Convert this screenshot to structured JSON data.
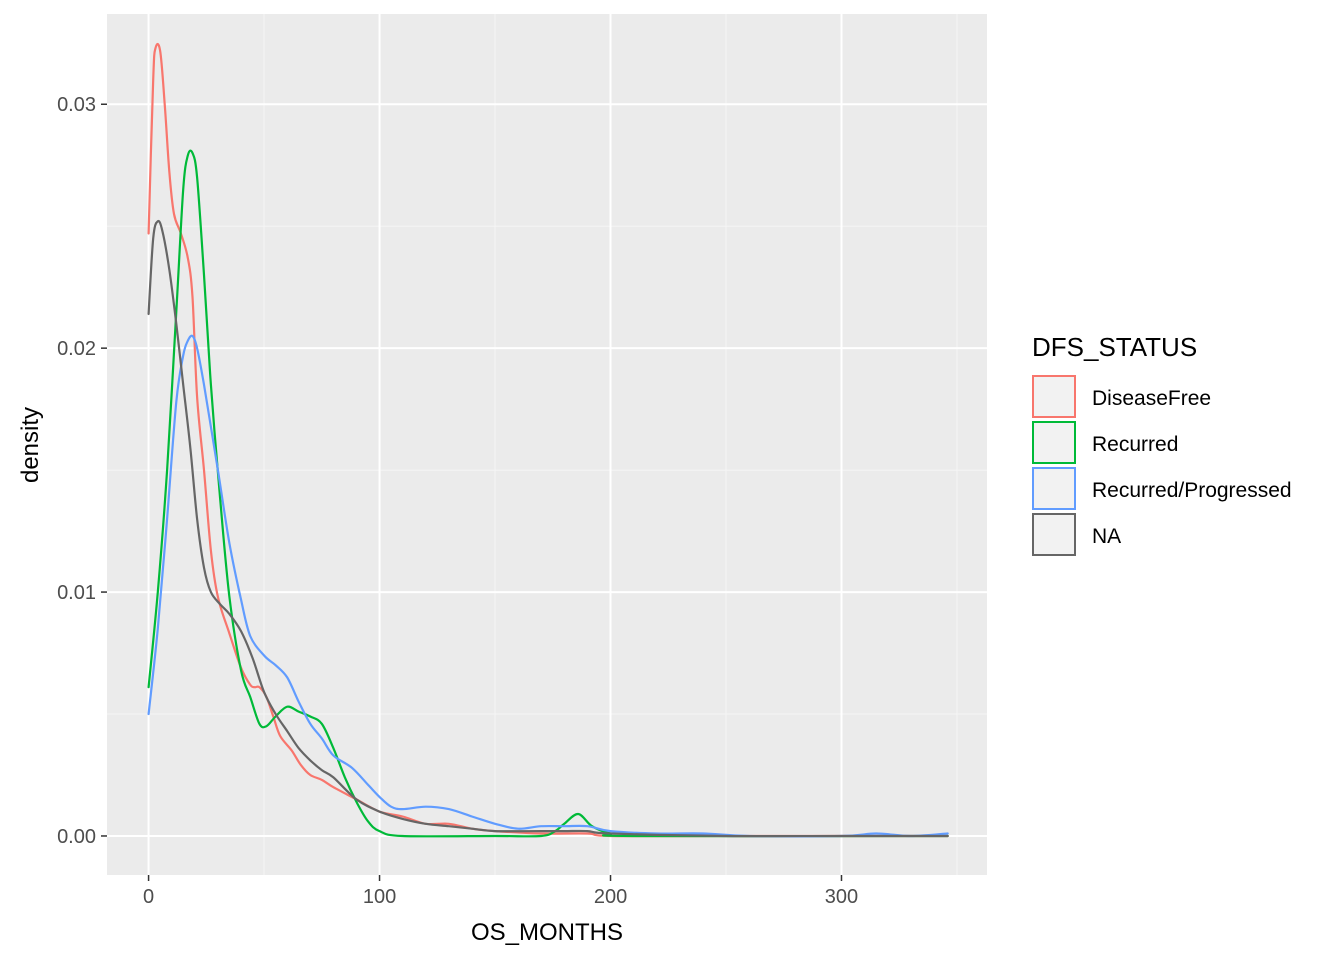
{
  "chart_data": {
    "type": "line",
    "subtype": "density",
    "title": "",
    "xlabel": "OS_MONTHS",
    "ylabel": "density",
    "xlim": [
      -18,
      363
    ],
    "ylim": [
      -0.0016,
      0.0337
    ],
    "x_ticks": [
      0,
      100,
      200,
      300
    ],
    "x_tick_labels": [
      "0",
      "100",
      "200",
      "300"
    ],
    "y_ticks": [
      0.0,
      0.01,
      0.02,
      0.03
    ],
    "y_tick_labels": [
      "0.00",
      "0.01",
      "0.02",
      "0.03"
    ],
    "grid": true,
    "legend": {
      "title": "DFS_STATUS",
      "position": "right"
    },
    "series": [
      {
        "name": "DiseaseFree",
        "color": "#F8766D",
        "points": [
          [
            0,
            0.0247
          ],
          [
            2,
            0.031
          ],
          [
            3,
            0.0323
          ],
          [
            5,
            0.0322
          ],
          [
            7,
            0.03
          ],
          [
            9,
            0.0272
          ],
          [
            11,
            0.0255
          ],
          [
            14,
            0.0247
          ],
          [
            17,
            0.0237
          ],
          [
            19,
            0.0221
          ],
          [
            21,
            0.018
          ],
          [
            24,
            0.015
          ],
          [
            27,
            0.0117
          ],
          [
            30,
            0.0098
          ],
          [
            35,
            0.0083
          ],
          [
            40,
            0.0069
          ],
          [
            44,
            0.0062
          ],
          [
            46,
            0.0061
          ],
          [
            48,
            0.0061
          ],
          [
            51,
            0.0057
          ],
          [
            54,
            0.0049
          ],
          [
            57,
            0.0041
          ],
          [
            62,
            0.0035
          ],
          [
            66,
            0.0029
          ],
          [
            70,
            0.0025
          ],
          [
            75,
            0.0023
          ],
          [
            80,
            0.002
          ],
          [
            90,
            0.0015
          ],
          [
            100,
            0.001
          ],
          [
            110,
            0.0008
          ],
          [
            120,
            0.0005
          ],
          [
            130,
            0.0005
          ],
          [
            140,
            0.0003
          ],
          [
            150,
            0.0002
          ],
          [
            170,
            0.0001
          ],
          [
            190,
            0.0001
          ],
          [
            200,
            0.0
          ],
          [
            250,
            0.0
          ],
          [
            300,
            0.0
          ],
          [
            346,
            0.0
          ]
        ]
      },
      {
        "name": "Recurred",
        "color": "#00BA38",
        "points": [
          [
            0,
            0.0061
          ],
          [
            4,
            0.01
          ],
          [
            8,
            0.015
          ],
          [
            12,
            0.0215
          ],
          [
            15,
            0.0265
          ],
          [
            17,
            0.0279
          ],
          [
            19,
            0.028
          ],
          [
            21,
            0.027
          ],
          [
            24,
            0.023
          ],
          [
            27,
            0.0185
          ],
          [
            31,
            0.0138
          ],
          [
            35,
            0.0098
          ],
          [
            40,
            0.0068
          ],
          [
            44,
            0.0057
          ],
          [
            48,
            0.0046
          ],
          [
            51,
            0.0045
          ],
          [
            55,
            0.0049
          ],
          [
            60,
            0.0053
          ],
          [
            65,
            0.0051
          ],
          [
            70,
            0.0049
          ],
          [
            75,
            0.0046
          ],
          [
            80,
            0.0036
          ],
          [
            85,
            0.0024
          ],
          [
            90,
            0.0014
          ],
          [
            95,
            0.0006
          ],
          [
            100,
            0.0002
          ],
          [
            110,
            0.0
          ],
          [
            150,
            0.0
          ],
          [
            170,
            0.0
          ],
          [
            176,
            0.0002
          ],
          [
            180,
            0.0005
          ],
          [
            186,
            0.0009
          ],
          [
            192,
            0.0004
          ],
          [
            200,
            0.0001
          ],
          [
            210,
            0.0
          ],
          [
            346,
            0.0
          ]
        ]
      },
      {
        "name": "Recurred/Progressed",
        "color": "#619CFF",
        "points": [
          [
            0,
            0.005
          ],
          [
            4,
            0.0085
          ],
          [
            8,
            0.013
          ],
          [
            12,
            0.0178
          ],
          [
            15,
            0.0197
          ],
          [
            17,
            0.0203
          ],
          [
            19,
            0.0205
          ],
          [
            21,
            0.02
          ],
          [
            24,
            0.0185
          ],
          [
            30,
            0.015
          ],
          [
            35,
            0.012
          ],
          [
            40,
            0.0097
          ],
          [
            44,
            0.0082
          ],
          [
            50,
            0.0074
          ],
          [
            55,
            0.007
          ],
          [
            60,
            0.0065
          ],
          [
            65,
            0.0055
          ],
          [
            70,
            0.0046
          ],
          [
            75,
            0.004
          ],
          [
            80,
            0.0033
          ],
          [
            88,
            0.0028
          ],
          [
            95,
            0.0021
          ],
          [
            100,
            0.0016
          ],
          [
            105,
            0.0012
          ],
          [
            110,
            0.0011
          ],
          [
            120,
            0.0012
          ],
          [
            130,
            0.0011
          ],
          [
            140,
            0.0008
          ],
          [
            150,
            0.0005
          ],
          [
            160,
            0.0003
          ],
          [
            170,
            0.0004
          ],
          [
            180,
            0.0004
          ],
          [
            190,
            0.0004
          ],
          [
            200,
            0.0002
          ],
          [
            220,
            0.0001
          ],
          [
            240,
            0.0001
          ],
          [
            260,
            0.0
          ],
          [
            300,
            0.0
          ],
          [
            315,
            0.0001
          ],
          [
            330,
            0.0
          ],
          [
            346,
            0.0001
          ]
        ]
      },
      {
        "name": "NA",
        "color": "#666666",
        "points": [
          [
            0,
            0.0214
          ],
          [
            2,
            0.0245
          ],
          [
            4,
            0.0252
          ],
          [
            6,
            0.0248
          ],
          [
            9,
            0.0232
          ],
          [
            12,
            0.021
          ],
          [
            15,
            0.0185
          ],
          [
            18,
            0.016
          ],
          [
            21,
            0.013
          ],
          [
            24,
            0.011
          ],
          [
            27,
            0.01
          ],
          [
            31,
            0.0095
          ],
          [
            35,
            0.0091
          ],
          [
            40,
            0.0084
          ],
          [
            45,
            0.0073
          ],
          [
            50,
            0.0059
          ],
          [
            55,
            0.005
          ],
          [
            60,
            0.0043
          ],
          [
            65,
            0.0036
          ],
          [
            70,
            0.0031
          ],
          [
            75,
            0.0027
          ],
          [
            80,
            0.0024
          ],
          [
            90,
            0.0015
          ],
          [
            100,
            0.001
          ],
          [
            110,
            0.0007
          ],
          [
            120,
            0.0005
          ],
          [
            130,
            0.0004
          ],
          [
            140,
            0.0003
          ],
          [
            150,
            0.0002
          ],
          [
            170,
            0.0002
          ],
          [
            180,
            0.0002
          ],
          [
            190,
            0.0002
          ],
          [
            200,
            0.0001
          ],
          [
            250,
            0.0
          ],
          [
            300,
            0.0
          ],
          [
            346,
            0.0
          ]
        ]
      }
    ]
  }
}
